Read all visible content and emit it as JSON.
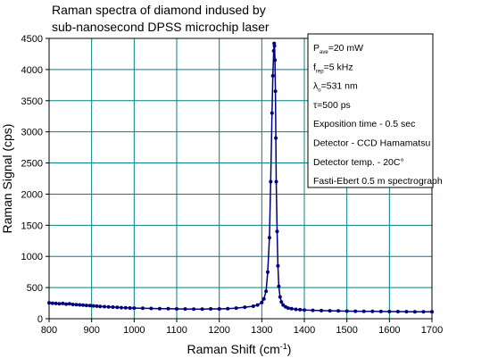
{
  "chart_data": {
    "type": "scatter",
    "title_lines": [
      "Raman spectra of diamond  indused by",
      "sub-nanosecond DPSS microchip laser"
    ],
    "xlabel": "Raman Shift (cm",
    "xlabel_sup": "-1",
    "xlabel_close": ")",
    "ylabel": "Raman Signal (cps)",
    "xlim": [
      800,
      1700
    ],
    "ylim": [
      0,
      4500
    ],
    "xticks": [
      800,
      900,
      1000,
      1100,
      1200,
      1300,
      1400,
      1500,
      1600,
      1700
    ],
    "yticks": [
      0,
      500,
      1000,
      1500,
      2000,
      2500,
      3000,
      3500,
      4000,
      4500
    ],
    "grid": true,
    "grid_color": "#008080",
    "series_color": "#00007a",
    "series": [
      {
        "x": [
          800,
          808,
          816,
          824,
          832,
          840,
          848,
          856,
          864,
          872,
          880,
          888,
          896,
          904,
          912,
          920,
          930,
          940,
          950,
          960,
          970,
          980,
          990,
          1000,
          1020,
          1040,
          1060,
          1080,
          1100,
          1120,
          1140,
          1160,
          1180,
          1200,
          1220,
          1240,
          1260,
          1280,
          1290,
          1300,
          1305,
          1310,
          1314,
          1318,
          1321,
          1324,
          1326,
          1328,
          1329,
          1330,
          1331,
          1332,
          1333,
          1334,
          1336,
          1338,
          1340,
          1343,
          1346,
          1350,
          1356,
          1362,
          1370,
          1380,
          1390,
          1400,
          1420,
          1440,
          1460,
          1480,
          1500,
          1520,
          1540,
          1560,
          1580,
          1600,
          1620,
          1640,
          1660,
          1680,
          1700
        ],
        "y": [
          255,
          250,
          245,
          240,
          245,
          235,
          240,
          230,
          225,
          222,
          218,
          214,
          210,
          206,
          202,
          198,
          194,
          190,
          186,
          182,
          178,
          175,
          172,
          170,
          167,
          165,
          162,
          160,
          158,
          156,
          155,
          155,
          157,
          158,
          162,
          170,
          185,
          200,
          220,
          260,
          320,
          440,
          750,
          1300,
          2200,
          3300,
          3900,
          4300,
          4420,
          4380,
          4150,
          3650,
          2900,
          2200,
          1400,
          850,
          520,
          350,
          270,
          220,
          190,
          170,
          160,
          150,
          145,
          140,
          135,
          130,
          128,
          125,
          122,
          120,
          118,
          117,
          116,
          115,
          114,
          113,
          112,
          112,
          112
        ]
      }
    ],
    "legend": {
      "placement": "top-right",
      "lines": [
        {
          "main": "P",
          "sub": "ave",
          "rest": "=20 mW"
        },
        {
          "main": "f",
          "sub": "rep",
          "rest": "=5 kHz"
        },
        {
          "main": "λ",
          "sub": "o",
          "rest": "=531 nm"
        },
        {
          "main": "τ=500 ps",
          "sub": "",
          "rest": ""
        },
        {
          "main": "Exposition time  - 0.5 sec",
          "sub": "",
          "rest": ""
        },
        {
          "main": "Detector - CCD Hamamatsu",
          "sub": "",
          "rest": ""
        },
        {
          "main": "Detector temp. - 20C°",
          "sub": "",
          "rest": ""
        },
        {
          "main": "Fasti-Ebert 0.5 m spectrograph",
          "sub": "",
          "rest": ""
        }
      ]
    }
  }
}
